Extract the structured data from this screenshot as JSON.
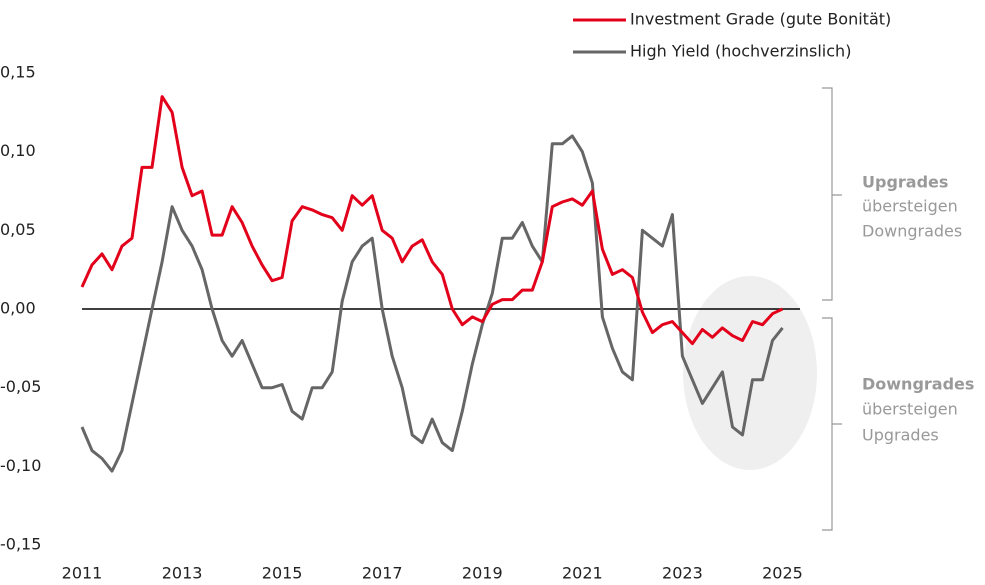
{
  "chart_data": {
    "type": "line",
    "x": [
      2011.0,
      2011.2,
      2011.4,
      2011.6,
      2011.8,
      2012.0,
      2012.2,
      2012.4,
      2012.6,
      2012.8,
      2013.0,
      2013.2,
      2013.4,
      2013.6,
      2013.8,
      2014.0,
      2014.2,
      2014.4,
      2014.6,
      2014.8,
      2015.0,
      2015.2,
      2015.4,
      2015.6,
      2015.8,
      2016.0,
      2016.2,
      2016.4,
      2016.6,
      2016.8,
      2017.0,
      2017.2,
      2017.4,
      2017.6,
      2017.8,
      2018.0,
      2018.2,
      2018.4,
      2018.6,
      2018.8,
      2019.0,
      2019.2,
      2019.4,
      2019.6,
      2019.8,
      2020.0,
      2020.2,
      2020.4,
      2020.6,
      2020.8,
      2021.0,
      2021.2,
      2021.4,
      2021.6,
      2021.8,
      2022.0,
      2022.2,
      2022.4,
      2022.6,
      2022.8,
      2023.0,
      2023.2,
      2023.4,
      2023.6,
      2023.8,
      2024.0,
      2024.2,
      2024.4,
      2024.6,
      2024.8,
      2025.0
    ],
    "series": [
      {
        "name": "Investment Grade (gute Bonität)",
        "color": "#e2001a",
        "values": [
          0.014,
          0.028,
          0.035,
          0.025,
          0.04,
          0.045,
          0.09,
          0.09,
          0.135,
          0.125,
          0.09,
          0.072,
          0.075,
          0.047,
          0.047,
          0.065,
          0.055,
          0.04,
          0.028,
          0.018,
          0.02,
          0.056,
          0.065,
          0.063,
          0.06,
          0.058,
          0.05,
          0.072,
          0.066,
          0.072,
          0.05,
          0.045,
          0.03,
          0.04,
          0.044,
          0.03,
          0.022,
          0.0,
          -0.01,
          -0.005,
          -0.008,
          0.003,
          0.006,
          0.006,
          0.012,
          0.012,
          0.03,
          0.065,
          0.068,
          0.07,
          0.066,
          0.075,
          0.038,
          0.022,
          0.025,
          0.02,
          -0.002,
          -0.015,
          -0.01,
          -0.008,
          -0.015,
          -0.022,
          -0.013,
          -0.018,
          -0.012,
          -0.017,
          -0.02,
          -0.008,
          -0.01,
          -0.003,
          0.0
        ]
      },
      {
        "name": "High Yield (hochverzinslich)",
        "color": "#666666",
        "values": [
          -0.075,
          -0.09,
          -0.095,
          -0.103,
          -0.09,
          -0.06,
          -0.03,
          0.0,
          0.03,
          0.065,
          0.05,
          0.04,
          0.025,
          0.0,
          -0.02,
          -0.03,
          -0.02,
          -0.035,
          -0.05,
          -0.05,
          -0.048,
          -0.065,
          -0.07,
          -0.05,
          -0.05,
          -0.04,
          0.005,
          0.03,
          0.04,
          0.045,
          0.0,
          -0.03,
          -0.05,
          -0.08,
          -0.085,
          -0.07,
          -0.085,
          -0.09,
          -0.065,
          -0.035,
          -0.01,
          0.01,
          0.045,
          0.045,
          0.055,
          0.04,
          0.03,
          0.105,
          0.105,
          0.11,
          0.1,
          0.08,
          -0.005,
          -0.025,
          -0.04,
          -0.045,
          0.05,
          0.045,
          0.04,
          0.06,
          -0.03,
          -0.045,
          -0.06,
          -0.05,
          -0.04,
          -0.075,
          -0.08,
          -0.045,
          -0.045,
          -0.02,
          -0.012
        ]
      }
    ],
    "xlim": [
      2011,
      2025.35
    ],
    "xticks": [
      2011,
      2013,
      2015,
      2017,
      2019,
      2021,
      2023,
      2025
    ],
    "ylim": [
      -0.15,
      0.15
    ],
    "yticks": [
      {
        "value": -0.15,
        "label": "-0,15"
      },
      {
        "value": -0.1,
        "label": "-0,10"
      },
      {
        "value": -0.05,
        "label": "-0,05"
      },
      {
        "value": 0,
        "label": "0,00"
      },
      {
        "value": 0.05,
        "label": "0,05"
      },
      {
        "value": 0.1,
        "label": "0,10"
      },
      {
        "value": 0.15,
        "label": "0,15"
      }
    ],
    "grid": false,
    "annotations": [
      [
        "Upgrades",
        "übersteigen",
        "Downgrades"
      ],
      [
        "Downgrades",
        "übersteigen",
        "Upgrades"
      ]
    ]
  }
}
